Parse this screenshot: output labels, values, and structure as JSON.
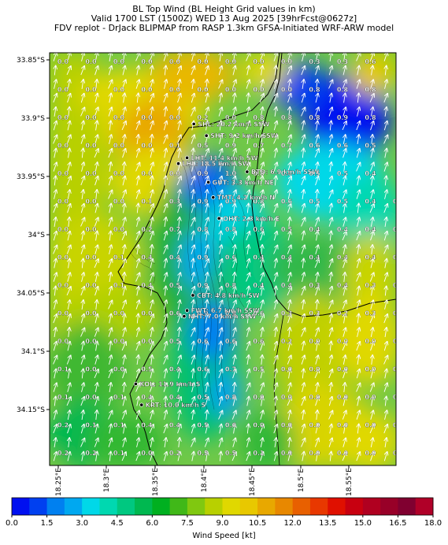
{
  "title": {
    "line1": "BL Top Wind (BL Height Grid values in km)",
    "line2": "Valid 1700 LST (1500Z) WED 13 Aug 2025 [39hrFcst@0627z]",
    "line3": "FDV replot - DrJack BLIPMAP from RASP 1.3km GFSA-Initiated WRF-ARW model"
  },
  "lat_labels": [
    "33.85°S",
    "33.9°S",
    "33.95°S",
    "34°S",
    "34.05°S",
    "34.1°S",
    "34.15°S"
  ],
  "lon_labels": [
    "18.25°E",
    "18.3°E",
    "18.35°E",
    "18.4°E",
    "18.45°E",
    "18.5°E",
    "18.55°E"
  ],
  "grid_values": [
    [
      "0.0",
      "0.0",
      "0.0",
      "0.0",
      "0.0",
      "0.0",
      "0.0",
      "0.0",
      "0.0",
      "0.3",
      "0.3",
      "0.6",
      ""
    ],
    [
      "0.0",
      "0.0",
      "0.0",
      "0.0",
      "0.0",
      "0.0",
      "0.0",
      "0.0",
      "0.0",
      "0.8",
      "0.8",
      "0.8",
      ""
    ],
    [
      "0.0",
      "0.0",
      "0.0",
      "0.0",
      "0.0",
      "0.2",
      "0.0",
      "0.8",
      "0.8",
      "0.8",
      "0.9",
      "0.8",
      ""
    ],
    [
      "0.0",
      "0.0",
      "0.0",
      "0.0",
      "0.1",
      "0.5",
      "0.9",
      "0.7",
      "0.7",
      "0.6",
      "0.6",
      "0.5",
      ""
    ],
    [
      "0.0",
      "0.0",
      "0.0",
      "0.0",
      "0.0",
      "0.9",
      "1.0",
      "0.8",
      "0.6",
      "0.5",
      "0.5",
      "0.4",
      ""
    ],
    [
      "0.0",
      "0.0",
      "0.0",
      "0.1",
      "0.3",
      "0.9",
      "0.9",
      "0.8",
      "0.6",
      "0.5",
      "0.5",
      "0.4",
      "0.4"
    ],
    [
      "0.0",
      "0.0",
      "0.0",
      "0.2",
      "0.7",
      "0.8",
      "0.8",
      "0.6",
      "0.5",
      "0.4",
      "0.4",
      "0.4",
      "0.4"
    ],
    [
      "0.0",
      "0.0",
      "0.1",
      "0.4",
      "0.4",
      "0.9",
      "0.6",
      "0.4",
      "0.4",
      "0.4",
      "0.4",
      "0.4",
      "0.3"
    ],
    [
      "0.0",
      "0.0",
      "0.1",
      "0.4",
      "0.5",
      "0.9",
      "0.8",
      "0.4",
      "0.4",
      "0.3",
      "0.4",
      "0.3",
      "0.3"
    ],
    [
      "0.0",
      "0.0",
      "0.0",
      "0.0",
      "0.6",
      "0.9",
      "0.9",
      "0.6",
      "0.3",
      "0.3",
      "0.2",
      "0.3",
      "0.0"
    ],
    [
      "0.0",
      "0.0",
      "0.0",
      "0.0",
      "0.5",
      "0.6",
      "0.6",
      "0.6",
      "0.2",
      "0.0",
      "0.0",
      "0.0",
      "0.0"
    ],
    [
      "0.1",
      "0.0",
      "0.0",
      "0.5",
      "0.4",
      "0.6",
      "0.7",
      "0.5",
      "0.0",
      "0.0",
      "0.0",
      "0.0",
      "0.0"
    ],
    [
      "0.1",
      "0.0",
      "0.1",
      "0.4",
      "0.4",
      "0.5",
      "0.8",
      "0.0",
      "0.0",
      "0.0",
      "0.0",
      "0.0",
      "0.0"
    ],
    [
      "0.2",
      "0.1",
      "0.1",
      "0.4",
      "0.4",
      "0.5",
      "0.6",
      "0.0",
      "0.0",
      "0.0",
      "0.0",
      "0.0",
      "0.0"
    ],
    [
      "0.2",
      "0.2",
      "0.1",
      "0.0",
      "0.2",
      "0.5",
      "0.5",
      "0.1",
      "0.0",
      "0.0",
      "0.0",
      "0.0",
      "0.0"
    ]
  ],
  "stations": [
    {
      "name": "SHL",
      "label": "SHL: 20.2 km/h SSW",
      "lon": 18.39,
      "lat": -33.905
    },
    {
      "name": "SHT",
      "label": "SHT: 9.2 km/h SSW",
      "lon": 18.403,
      "lat": -33.915
    },
    {
      "name": "LHT",
      "label": "LHT: 11.4 km/h SW",
      "lon": 18.383,
      "lat": -33.934
    },
    {
      "name": "LHL",
      "label": "LHL: 18.5 km/h SW",
      "lon": 18.374,
      "lat": -33.939
    },
    {
      "name": "BTO",
      "label": "BTO: 6.9 km/h SSW",
      "lon": 18.445,
      "lat": -33.946
    },
    {
      "name": "GUT",
      "label": "GUT: 3.3 km/h NE",
      "lon": 18.405,
      "lat": -33.955
    },
    {
      "name": "TMT",
      "label": "TMT: 4.2 km/h N",
      "lon": 18.41,
      "lat": -33.968
    },
    {
      "name": "OHT",
      "label": "OHT: 2.3 km/h E",
      "lon": 18.416,
      "lat": -33.986
    },
    {
      "name": "CBT",
      "label": "CBT: 4.8 km/h SW",
      "lon": 18.389,
      "lat": -34.052
    },
    {
      "name": "FWT",
      "label": "FWT: 6.7 km/h SSW",
      "lon": 18.383,
      "lat": -34.065
    },
    {
      "name": "NHT",
      "label": "NHT: 7.0 km/h SSW",
      "lon": 18.38,
      "lat": -34.07
    },
    {
      "name": "KOL",
      "label": "KOL: 11.9 km/h S",
      "lon": 18.33,
      "lat": -34.128
    },
    {
      "name": "KRT",
      "label": "KRT: 10.0 km/h S",
      "lon": 18.336,
      "lat": -34.146
    }
  ],
  "colorbar": {
    "title": "Wind Speed [kt]",
    "ticks": [
      "0.0",
      "1.5",
      "3.0",
      "4.5",
      "6.0",
      "7.5",
      "9.0",
      "10.5",
      "12.0",
      "13.5",
      "15.0",
      "16.5",
      "18.0"
    ],
    "colors": [
      "#0010f0",
      "#0040f0",
      "#0080f0",
      "#00a8f0",
      "#00d8e8",
      "#00d8b0",
      "#00c880",
      "#00b850",
      "#00b020",
      "#40b818",
      "#80c810",
      "#b8d000",
      "#e0d800",
      "#e8c800",
      "#e8a800",
      "#e88800",
      "#e86000",
      "#e83800",
      "#e01000",
      "#c80010",
      "#b00020",
      "#980028",
      "#800030",
      "#b00028"
    ]
  }
}
